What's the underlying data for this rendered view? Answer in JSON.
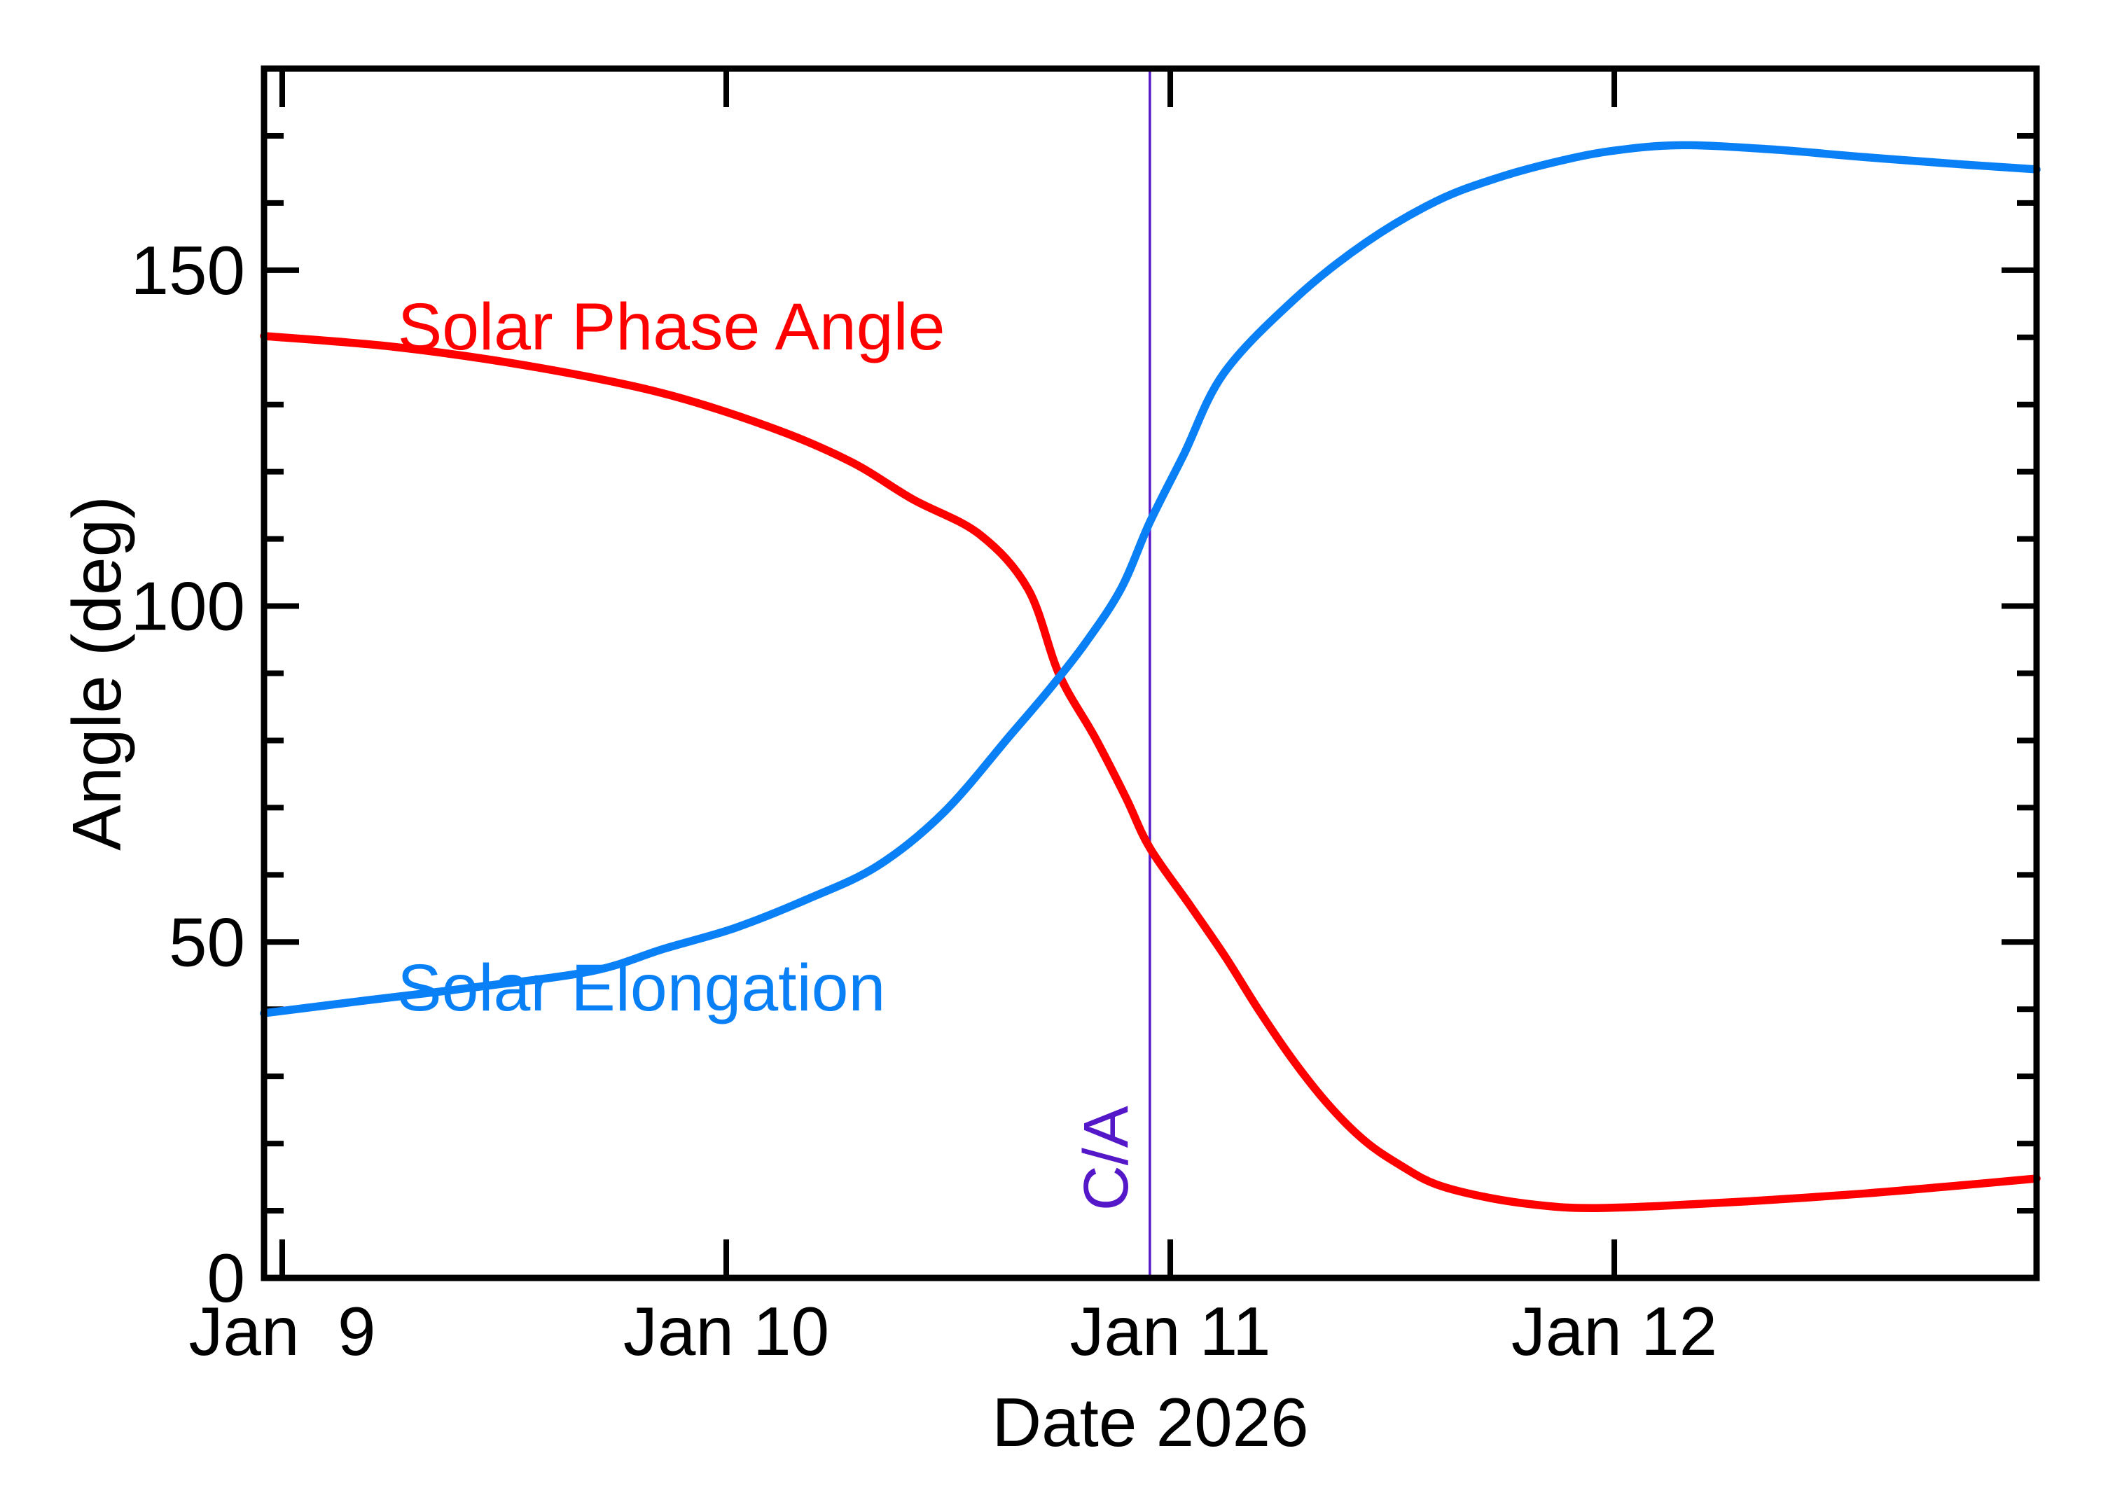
{
  "page": {
    "background": "#ffffff"
  },
  "chart_data": {
    "type": "line",
    "title": "",
    "xlabel": "Date 2026",
    "ylabel": "Angle (deg)",
    "legend_position": "inline-curve-labels",
    "grid": false,
    "x_axis": {
      "tick_labels": [
        "Jan  9",
        "Jan 10",
        "Jan 11",
        "Jan 12"
      ],
      "tick_days": [
        0,
        1,
        2,
        3
      ],
      "range_days": [
        -0.041,
        3.951
      ]
    },
    "y_axis": {
      "major_ticks": [
        0,
        50,
        100,
        150
      ],
      "minor_step": 10,
      "range": [
        0,
        180
      ]
    },
    "series": [
      {
        "name": "Solar Phase Angle",
        "color": "#ff0000",
        "label_anchor": {
          "day": 0.26,
          "deg": 138.2,
          "align": "start"
        },
        "points": [
          [
            -0.041,
            140.2
          ],
          [
            0.25,
            138.6
          ],
          [
            0.55,
            135.8
          ],
          [
            0.85,
            131.8
          ],
          [
            1.1,
            126.6
          ],
          [
            1.28,
            121.5
          ],
          [
            1.42,
            115.9
          ],
          [
            1.57,
            110.7
          ],
          [
            1.68,
            102.5
          ],
          [
            1.75,
            89.8
          ],
          [
            1.83,
            80.5
          ],
          [
            1.9,
            71.5
          ],
          [
            1.954,
            64.0
          ],
          [
            2.045,
            55.4
          ],
          [
            2.125,
            47.7
          ],
          [
            2.2,
            39.8
          ],
          [
            2.28,
            32.1
          ],
          [
            2.36,
            25.5
          ],
          [
            2.44,
            20.3
          ],
          [
            2.52,
            16.7
          ],
          [
            2.6,
            13.9
          ],
          [
            2.72,
            11.9
          ],
          [
            2.85,
            10.7
          ],
          [
            2.95,
            10.4
          ],
          [
            3.1,
            10.7
          ],
          [
            3.3,
            11.4
          ],
          [
            3.55,
            12.5
          ],
          [
            3.75,
            13.6
          ],
          [
            3.951,
            14.8
          ]
        ]
      },
      {
        "name": "Solar Elongation",
        "color": "#0a80f6",
        "label_anchor": {
          "day": 0.259,
          "deg": 39.8,
          "align": "start"
        },
        "points": [
          [
            -0.041,
            39.4
          ],
          [
            0.2,
            41.4
          ],
          [
            0.45,
            43.4
          ],
          [
            0.7,
            45.7
          ],
          [
            0.86,
            49.0
          ],
          [
            1.02,
            52.1
          ],
          [
            1.18,
            56.3
          ],
          [
            1.34,
            61.3
          ],
          [
            1.49,
            69.3
          ],
          [
            1.64,
            80.8
          ],
          [
            1.73,
            87.8
          ],
          [
            1.81,
            94.6
          ],
          [
            1.89,
            102.7
          ],
          [
            1.954,
            112.5
          ],
          [
            2.03,
            122.5
          ],
          [
            2.12,
            134.6
          ],
          [
            2.28,
            145.7
          ],
          [
            2.44,
            154.1
          ],
          [
            2.6,
            160.3
          ],
          [
            2.74,
            163.8
          ],
          [
            2.88,
            166.3
          ],
          [
            3.0,
            167.8
          ],
          [
            3.15,
            168.6
          ],
          [
            3.35,
            168.0
          ],
          [
            3.55,
            166.9
          ],
          [
            3.75,
            165.9
          ],
          [
            3.951,
            165.0
          ]
        ]
      }
    ],
    "annotations": {
      "close_approach": {
        "label": "C/A",
        "day": 1.954,
        "label_deg": 17.8,
        "color": "#5418c8"
      }
    }
  }
}
